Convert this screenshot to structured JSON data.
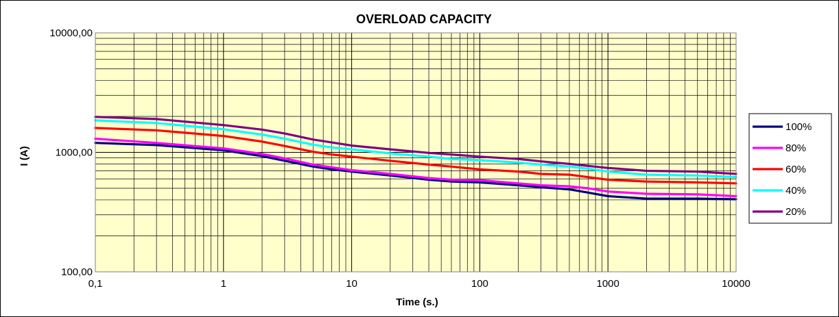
{
  "chart_data": {
    "type": "line",
    "title": "OVERLOAD CAPACITY",
    "xlabel": "Time (s.)",
    "ylabel": "I (A)",
    "x_scale": "log",
    "y_scale": "log",
    "xlim": [
      0.1,
      10000
    ],
    "ylim": [
      100,
      10000
    ],
    "x_ticks": [
      {
        "value": 0.1,
        "label": "0,1"
      },
      {
        "value": 1,
        "label": "1"
      },
      {
        "value": 10,
        "label": "10"
      },
      {
        "value": 100,
        "label": "100"
      },
      {
        "value": 1000,
        "label": "1000"
      },
      {
        "value": 10000,
        "label": "10000"
      }
    ],
    "y_ticks": [
      {
        "value": 100,
        "label": "100,00"
      },
      {
        "value": 1000,
        "label": "1000,00"
      },
      {
        "value": 10000,
        "label": "10000,00"
      }
    ],
    "grid": true,
    "legend_position": "right",
    "plot_background": "#FFFFCC",
    "series": [
      {
        "name": "100%",
        "color": "#000080",
        "x": [
          0.1,
          0.3,
          1,
          2,
          3,
          5,
          7,
          10,
          20,
          40,
          60,
          100,
          200,
          300,
          500,
          700,
          1000,
          2000,
          5000,
          10000
        ],
        "y": [
          1200,
          1150,
          1040,
          930,
          850,
          760,
          720,
          690,
          640,
          590,
          570,
          560,
          530,
          510,
          490,
          460,
          430,
          410,
          410,
          405
        ]
      },
      {
        "name": "80%",
        "color": "#FF00FF",
        "x": [
          0.1,
          0.3,
          1,
          2,
          3,
          5,
          7,
          10,
          20,
          40,
          60,
          100,
          200,
          300,
          500,
          700,
          1000,
          2000,
          5000,
          10000
        ],
        "y": [
          1300,
          1200,
          1080,
          970,
          890,
          790,
          750,
          710,
          660,
          610,
          590,
          585,
          550,
          530,
          520,
          500,
          470,
          450,
          445,
          430
        ]
      },
      {
        "name": "60%",
        "color": "#FF0000",
        "x": [
          0.1,
          0.3,
          1,
          2,
          3,
          5,
          7,
          10,
          20,
          40,
          60,
          100,
          200,
          300,
          500,
          700,
          1000,
          2000,
          5000,
          10000
        ],
        "y": [
          1600,
          1530,
          1370,
          1230,
          1130,
          1010,
          960,
          920,
          850,
          790,
          760,
          720,
          690,
          660,
          650,
          620,
          590,
          570,
          560,
          550
        ]
      },
      {
        "name": "40%",
        "color": "#00FFFF",
        "x": [
          0.1,
          0.3,
          1,
          2,
          3,
          5,
          7,
          10,
          20,
          40,
          60,
          100,
          200,
          300,
          500,
          700,
          1000,
          2000,
          5000,
          10000
        ],
        "y": [
          1850,
          1760,
          1560,
          1410,
          1300,
          1160,
          1100,
          1060,
          980,
          920,
          880,
          860,
          820,
          790,
          760,
          730,
          690,
          650,
          640,
          620
        ]
      },
      {
        "name": "20%",
        "color": "#800080",
        "x": [
          0.1,
          0.3,
          1,
          2,
          3,
          5,
          7,
          10,
          20,
          40,
          60,
          100,
          200,
          300,
          500,
          700,
          1000,
          2000,
          5000,
          10000
        ],
        "y": [
          1980,
          1900,
          1690,
          1550,
          1440,
          1280,
          1210,
          1140,
          1060,
          990,
          960,
          920,
          880,
          840,
          800,
          770,
          740,
          700,
          690,
          660
        ]
      }
    ]
  }
}
